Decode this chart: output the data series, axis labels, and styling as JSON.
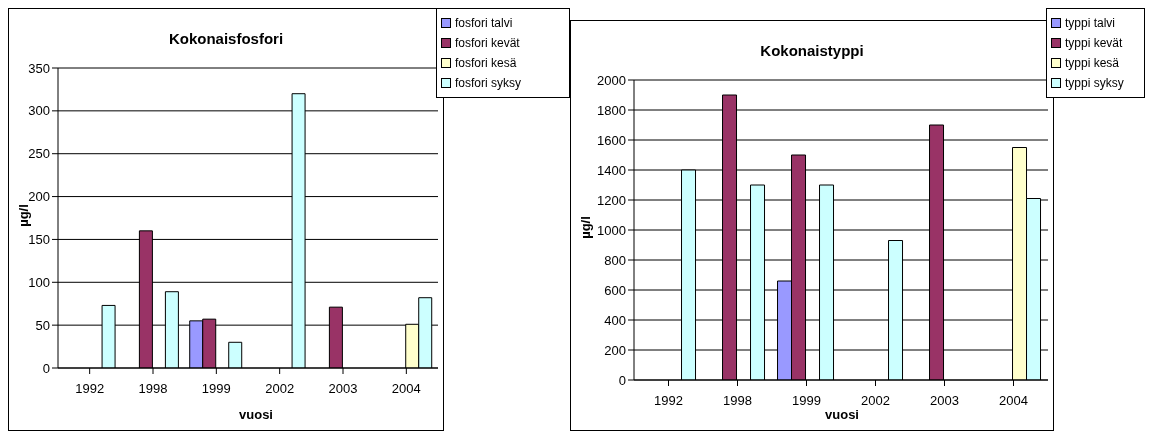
{
  "chart_data": [
    {
      "type": "bar",
      "title": "Kokonaisfosfori",
      "xlabel": "vuosi",
      "ylabel": "µg/l",
      "categories": [
        "1992",
        "1998",
        "1999",
        "2002",
        "2003",
        "2004"
      ],
      "series": [
        {
          "name": "fosfori talvi",
          "color": "#9999ff",
          "values": [
            null,
            null,
            55,
            null,
            null,
            null
          ]
        },
        {
          "name": "fosfori kevät",
          "color": "#993366",
          "values": [
            null,
            160,
            57,
            null,
            71,
            null
          ]
        },
        {
          "name": "fosfori kesä",
          "color": "#ffffcc",
          "values": [
            null,
            null,
            null,
            null,
            null,
            51
          ]
        },
        {
          "name": "fosfori syksy",
          "color": "#ccffff",
          "values": [
            73,
            89,
            30,
            320,
            null,
            82
          ]
        }
      ],
      "ylim": [
        0,
        350
      ],
      "yticks": [
        0,
        50,
        100,
        150,
        200,
        250,
        300,
        350
      ],
      "grid": "y",
      "legend": "top right"
    },
    {
      "type": "bar",
      "title": "Kokonaistyppi",
      "xlabel": "vuosi",
      "ylabel": "µg/l",
      "categories": [
        "1992",
        "1998",
        "1999",
        "2002",
        "2003",
        "2004"
      ],
      "series": [
        {
          "name": "typpi talvi",
          "color": "#9999ff",
          "values": [
            null,
            null,
            660,
            null,
            null,
            null
          ]
        },
        {
          "name": "typpi kevät",
          "color": "#993366",
          "values": [
            null,
            1900,
            1500,
            null,
            1700,
            null
          ]
        },
        {
          "name": "typpi kesä",
          "color": "#ffffcc",
          "values": [
            null,
            null,
            null,
            null,
            null,
            1550
          ]
        },
        {
          "name": "typpi syksy",
          "color": "#ccffff",
          "values": [
            1400,
            1300,
            1300,
            930,
            null,
            1210
          ]
        }
      ],
      "ylim": [
        0,
        2000
      ],
      "yticks": [
        0,
        200,
        400,
        600,
        800,
        1000,
        1200,
        1400,
        1600,
        1800,
        2000
      ],
      "grid": "y",
      "legend": "top right"
    }
  ]
}
